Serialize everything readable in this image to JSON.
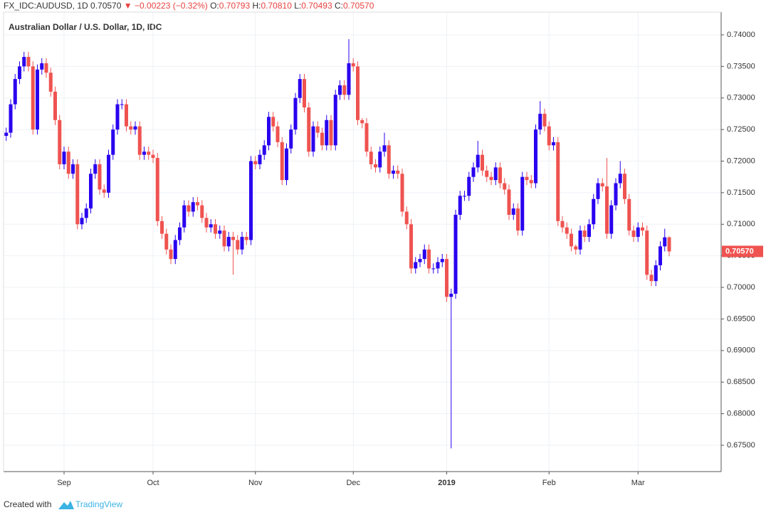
{
  "chart_data": {
    "type": "candlestick",
    "title": "Australian Dollar / U.S. Dollar, 1D, IDC",
    "header": {
      "symbol": "FX_IDC:AUDUSD, 1D",
      "last": "0.70570",
      "arrow": "▼",
      "change": "−0.00223 (−0.32%)",
      "ohlc": [
        {
          "label": "O:",
          "value": "0.70793"
        },
        {
          "label": "H:",
          "value": "0.70810"
        },
        {
          "label": "L:",
          "value": "0.70493"
        },
        {
          "label": "C:",
          "value": "0.70570"
        }
      ]
    },
    "last_price_label": "0.70570",
    "footer": {
      "created": "Created with",
      "brand": "TradingView"
    },
    "up_color": "#2900ef",
    "down_color": "#ef5350",
    "grid": true,
    "ylim": [
      0.67083,
      0.7436
    ],
    "yticks": [
      {
        "value": 0.675,
        "label": "0.67500"
      },
      {
        "value": 0.68,
        "label": "0.68000"
      },
      {
        "value": 0.685,
        "label": "0.68500"
      },
      {
        "value": 0.69,
        "label": "0.69000"
      },
      {
        "value": 0.695,
        "label": "0.69500"
      },
      {
        "value": 0.7,
        "label": "0.70000"
      },
      {
        "value": 0.705,
        "label": "0.70500"
      },
      {
        "value": 0.71,
        "label": "0.71000"
      },
      {
        "value": 0.715,
        "label": "0.71500"
      },
      {
        "value": 0.72,
        "label": "0.72000"
      },
      {
        "value": 0.725,
        "label": "0.72500"
      },
      {
        "value": 0.73,
        "label": "0.73000"
      },
      {
        "value": 0.735,
        "label": "0.73500"
      },
      {
        "value": 0.74,
        "label": "0.74000"
      }
    ],
    "categories": [
      null,
      null,
      null,
      null,
      null,
      null,
      null,
      null,
      null,
      null,
      null,
      null,
      null,
      "Sep",
      null,
      null,
      null,
      null,
      null,
      null,
      null,
      null,
      null,
      null,
      null,
      null,
      null,
      null,
      null,
      null,
      null,
      null,
      null,
      "Oct",
      null,
      null,
      null,
      null,
      null,
      null,
      null,
      null,
      null,
      null,
      null,
      null,
      null,
      null,
      null,
      null,
      null,
      null,
      null,
      null,
      null,
      null,
      "Nov",
      null,
      null,
      null,
      null,
      null,
      null,
      null,
      null,
      null,
      null,
      null,
      null,
      null,
      null,
      null,
      null,
      null,
      null,
      null,
      null,
      null,
      "Dec",
      null,
      null,
      null,
      null,
      null,
      null,
      null,
      null,
      null,
      null,
      null,
      null,
      null,
      null,
      null,
      null,
      null,
      null,
      null,
      null,
      "2019",
      null,
      null,
      null,
      null,
      null,
      null,
      null,
      null,
      null,
      null,
      null,
      null,
      null,
      null,
      null,
      null,
      null,
      null,
      null,
      null,
      null,
      null,
      "Feb",
      null,
      null,
      null,
      null,
      null,
      null,
      null,
      null,
      null,
      null,
      null,
      null,
      null,
      null,
      null,
      null,
      null,
      null,
      null,
      "Mar",
      null,
      null,
      null,
      null,
      null,
      null,
      null
    ],
    "open": [
      0.724,
      0.7245,
      0.729,
      0.733,
      0.735,
      0.7365,
      0.735,
      0.725,
      0.7345,
      0.7355,
      0.734,
      0.731,
      0.7265,
      0.7195,
      0.7215,
      0.718,
      0.7195,
      0.71,
      0.711,
      0.7125,
      0.718,
      0.7195,
      0.7155,
      0.715,
      0.721,
      0.725,
      0.729,
      0.729,
      0.7255,
      0.725,
      0.7255,
      0.721,
      0.7215,
      0.721,
      0.7205,
      0.7105,
      0.7085,
      0.706,
      0.7045,
      0.7075,
      0.7095,
      0.713,
      0.712,
      0.7135,
      0.713,
      0.711,
      0.7095,
      0.71,
      0.7085,
      0.709,
      0.7065,
      0.708,
      0.7075,
      0.706,
      0.708,
      0.7075,
      0.72,
      0.7195,
      0.721,
      0.7225,
      0.727,
      0.7255,
      0.723,
      0.717,
      0.722,
      0.725,
      0.73,
      0.733,
      0.7285,
      0.7215,
      0.7255,
      0.7245,
      0.7225,
      0.7265,
      0.7225,
      0.7305,
      0.732,
      0.7305,
      0.7355,
      0.735,
      0.7265,
      0.726,
      0.7215,
      0.7195,
      0.719,
      0.7215,
      0.7225,
      0.718,
      0.7185,
      0.718,
      0.712,
      0.71,
      0.703,
      0.704,
      0.7045,
      0.706,
      0.703,
      0.703,
      0.704,
      0.7045,
      0.6985,
      0.699,
      0.7115,
      0.7145,
      0.7145,
      0.7175,
      0.719,
      0.721,
      0.7185,
      0.7175,
      0.717,
      0.719,
      0.7165,
      0.7155,
      0.7115,
      0.7125,
      0.709,
      0.7175,
      0.717,
      0.7165,
      0.725,
      0.7275,
      0.7255,
      0.7225,
      0.723,
      0.7105,
      0.7095,
      0.7085,
      0.7065,
      0.706,
      0.709,
      0.708,
      0.71,
      0.714,
      0.7165,
      0.716,
      0.7085,
      0.713,
      0.7165,
      0.718,
      0.714,
      0.709,
      0.708,
      0.7095,
      0.709,
      0.702,
      0.701,
      0.7035,
      0.7065,
      0.70793
    ],
    "high": [
      0.7253,
      0.7298,
      0.7338,
      0.7358,
      0.7373,
      0.7373,
      0.7358,
      0.7353,
      0.7363,
      0.7363,
      0.7348,
      0.7318,
      0.7273,
      0.7223,
      0.7223,
      0.7203,
      0.7203,
      0.7118,
      0.7133,
      0.7188,
      0.7203,
      0.7203,
      0.7163,
      0.7218,
      0.7258,
      0.7298,
      0.7298,
      0.7298,
      0.7263,
      0.7263,
      0.7263,
      0.7223,
      0.7223,
      0.7218,
      0.7213,
      0.7113,
      0.7093,
      0.7068,
      0.7083,
      0.7103,
      0.7138,
      0.7138,
      0.7143,
      0.7143,
      0.7138,
      0.7118,
      0.7108,
      0.7108,
      0.7098,
      0.7098,
      0.7088,
      0.7088,
      0.7083,
      0.7088,
      0.7088,
      0.7208,
      0.7208,
      0.7218,
      0.7233,
      0.7278,
      0.7278,
      0.7263,
      0.7238,
      0.7228,
      0.7258,
      0.7308,
      0.7338,
      0.7338,
      0.7293,
      0.7263,
      0.7263,
      0.7253,
      0.7273,
      0.7273,
      0.7313,
      0.7328,
      0.7328,
      0.7393,
      0.7363,
      0.7358,
      0.7268,
      0.7268,
      0.7223,
      0.7203,
      0.7223,
      0.7245,
      0.7233,
      0.7193,
      0.7193,
      0.7188,
      0.7128,
      0.7108,
      0.7048,
      0.7053,
      0.7068,
      0.7068,
      0.7038,
      0.7048,
      0.7053,
      0.7053,
      0.6998,
      0.7123,
      0.7153,
      0.7153,
      0.7183,
      0.7198,
      0.7232,
      0.7218,
      0.7193,
      0.7183,
      0.7198,
      0.7198,
      0.7173,
      0.7163,
      0.7133,
      0.7133,
      0.7183,
      0.7183,
      0.7178,
      0.7258,
      0.7295,
      0.7283,
      0.7263,
      0.7238,
      0.7238,
      0.7113,
      0.7103,
      0.7093,
      0.7068,
      0.7098,
      0.7098,
      0.7108,
      0.7148,
      0.7173,
      0.7173,
      0.7205,
      0.7138,
      0.7173,
      0.72,
      0.7188,
      0.7148,
      0.7098,
      0.7103,
      0.7103,
      0.7098,
      0.7028,
      0.7043,
      0.7073,
      0.7093,
      0.7081
    ],
    "low": [
      0.7232,
      0.7237,
      0.7282,
      0.7322,
      0.7342,
      0.7342,
      0.7242,
      0.7242,
      0.7337,
      0.7332,
      0.7302,
      0.7257,
      0.7187,
      0.7187,
      0.7172,
      0.7172,
      0.7092,
      0.7092,
      0.7102,
      0.7117,
      0.7172,
      0.7147,
      0.7142,
      0.7142,
      0.7202,
      0.7242,
      0.7282,
      0.7247,
      0.7242,
      0.7242,
      0.7202,
      0.7202,
      0.7202,
      0.7197,
      0.7097,
      0.7077,
      0.7052,
      0.7037,
      0.7037,
      0.7067,
      0.7087,
      0.7112,
      0.7112,
      0.7122,
      0.7102,
      0.7087,
      0.7087,
      0.7077,
      0.7077,
      0.7057,
      0.7057,
      0.702,
      0.7052,
      0.7052,
      0.7067,
      0.7067,
      0.7187,
      0.7187,
      0.7202,
      0.7217,
      0.7247,
      0.7222,
      0.7162,
      0.7162,
      0.7212,
      0.7242,
      0.7292,
      0.7277,
      0.7207,
      0.7207,
      0.7237,
      0.7217,
      0.7217,
      0.7217,
      0.7217,
      0.7297,
      0.7297,
      0.7297,
      0.7342,
      0.7257,
      0.7252,
      0.7207,
      0.7187,
      0.7182,
      0.7182,
      0.7207,
      0.7172,
      0.7172,
      0.7172,
      0.7112,
      0.7092,
      0.7022,
      0.7022,
      0.7032,
      0.7037,
      0.7022,
      0.7022,
      0.7022,
      0.7032,
      0.6977,
      0.6745,
      0.6982,
      0.7107,
      0.7137,
      0.7137,
      0.7167,
      0.7182,
      0.7177,
      0.7167,
      0.7162,
      0.7162,
      0.7157,
      0.7147,
      0.7107,
      0.7107,
      0.7082,
      0.7082,
      0.7162,
      0.7157,
      0.7157,
      0.7242,
      0.7247,
      0.7217,
      0.7217,
      0.7097,
      0.7087,
      0.7077,
      0.7057,
      0.7052,
      0.7052,
      0.7072,
      0.7072,
      0.7092,
      0.7132,
      0.7152,
      0.7077,
      0.7077,
      0.7122,
      0.7157,
      0.7132,
      0.7082,
      0.7072,
      0.7072,
      0.7082,
      0.7012,
      0.7002,
      0.7002,
      0.7027,
      0.7057,
      0.70493
    ],
    "close": [
      0.7245,
      0.729,
      0.733,
      0.735,
      0.7365,
      0.735,
      0.725,
      0.7345,
      0.7355,
      0.734,
      0.731,
      0.7265,
      0.7195,
      0.7215,
      0.718,
      0.7195,
      0.71,
      0.711,
      0.7125,
      0.718,
      0.7195,
      0.7155,
      0.715,
      0.721,
      0.725,
      0.729,
      0.729,
      0.7255,
      0.725,
      0.7255,
      0.721,
      0.7215,
      0.721,
      0.7205,
      0.7105,
      0.7085,
      0.706,
      0.7045,
      0.7075,
      0.7095,
      0.713,
      0.712,
      0.7135,
      0.713,
      0.711,
      0.7095,
      0.71,
      0.7085,
      0.709,
      0.7065,
      0.708,
      0.7075,
      0.706,
      0.708,
      0.7075,
      0.72,
      0.7195,
      0.721,
      0.7225,
      0.727,
      0.7255,
      0.723,
      0.717,
      0.722,
      0.725,
      0.73,
      0.733,
      0.7285,
      0.7215,
      0.7255,
      0.7245,
      0.7225,
      0.7265,
      0.7225,
      0.7305,
      0.732,
      0.7305,
      0.7355,
      0.735,
      0.7265,
      0.726,
      0.7215,
      0.7195,
      0.719,
      0.7215,
      0.7225,
      0.718,
      0.7185,
      0.718,
      0.712,
      0.71,
      0.703,
      0.704,
      0.7045,
      0.706,
      0.703,
      0.703,
      0.704,
      0.7045,
      0.6985,
      0.699,
      0.7115,
      0.7145,
      0.7145,
      0.7175,
      0.719,
      0.721,
      0.7185,
      0.7175,
      0.717,
      0.719,
      0.7165,
      0.7155,
      0.7115,
      0.7125,
      0.709,
      0.7175,
      0.717,
      0.7165,
      0.725,
      0.7275,
      0.7255,
      0.7225,
      0.723,
      0.7105,
      0.7095,
      0.7085,
      0.7065,
      0.706,
      0.709,
      0.708,
      0.71,
      0.714,
      0.7165,
      0.716,
      0.7085,
      0.713,
      0.7165,
      0.718,
      0.714,
      0.709,
      0.708,
      0.7095,
      0.709,
      0.702,
      0.701,
      0.7035,
      0.7065,
      0.70793,
      0.7057
    ]
  }
}
